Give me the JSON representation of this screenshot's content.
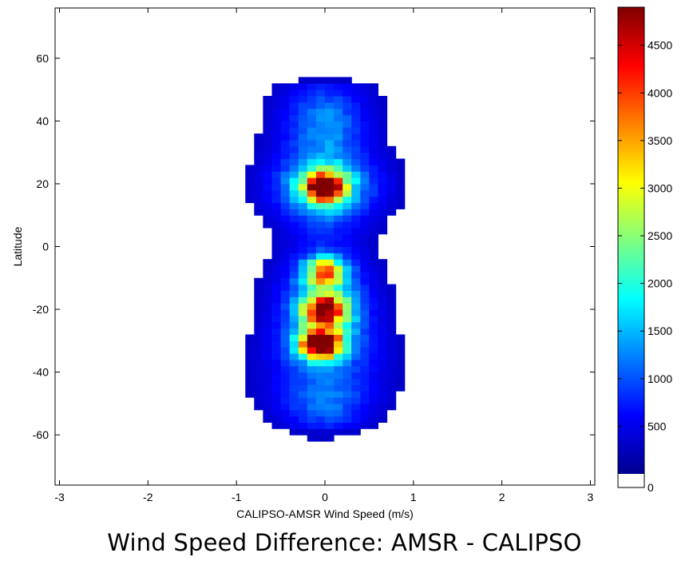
{
  "caption": "Wind Speed Difference: AMSR - CALIPSO",
  "chart_data": {
    "type": "heatmap",
    "title": "",
    "xlabel": "CALIPSO-AMSR Wind Speed (m/s)",
    "ylabel": "Latitude",
    "xlim": [
      -3.05,
      3.05
    ],
    "ylim": [
      -76,
      76
    ],
    "x_ticks": [
      -3,
      -2,
      -1,
      0,
      1,
      2,
      3
    ],
    "x_tick_labels": [
      "-3",
      "-2",
      "-1",
      "0",
      "1",
      "2",
      "3"
    ],
    "y_ticks": [
      60,
      40,
      20,
      0,
      -20,
      -40,
      -60
    ],
    "y_tick_labels": [
      "60",
      "40",
      "20",
      "0",
      "-20",
      "-40",
      "-60"
    ],
    "colorbar": {
      "colormap": "jet",
      "range": [
        0,
        4900
      ],
      "ticks": [
        0,
        500,
        1000,
        1500,
        2000,
        2500,
        3000,
        3500,
        4000,
        4500
      ],
      "tick_labels": [
        "0",
        "500",
        "1000",
        "1500",
        "2000",
        "2500",
        "3000",
        "3500",
        "4000",
        "4500"
      ]
    },
    "bin_width_x": 0.1,
    "bin_height_lat": 2,
    "distribution_model": {
      "peaks": [
        {
          "x": 0,
          "lat": 19,
          "count": 4200
        },
        {
          "x": -0.05,
          "lat": -31,
          "count": 4900
        },
        {
          "x": 0,
          "lat": -20,
          "count": 3700
        },
        {
          "x": 0,
          "lat": -8,
          "count": 3000
        }
      ],
      "lat_extent": [
        -64,
        70
      ],
      "x_extent_core": [
        -1.2,
        1.3
      ]
    }
  }
}
